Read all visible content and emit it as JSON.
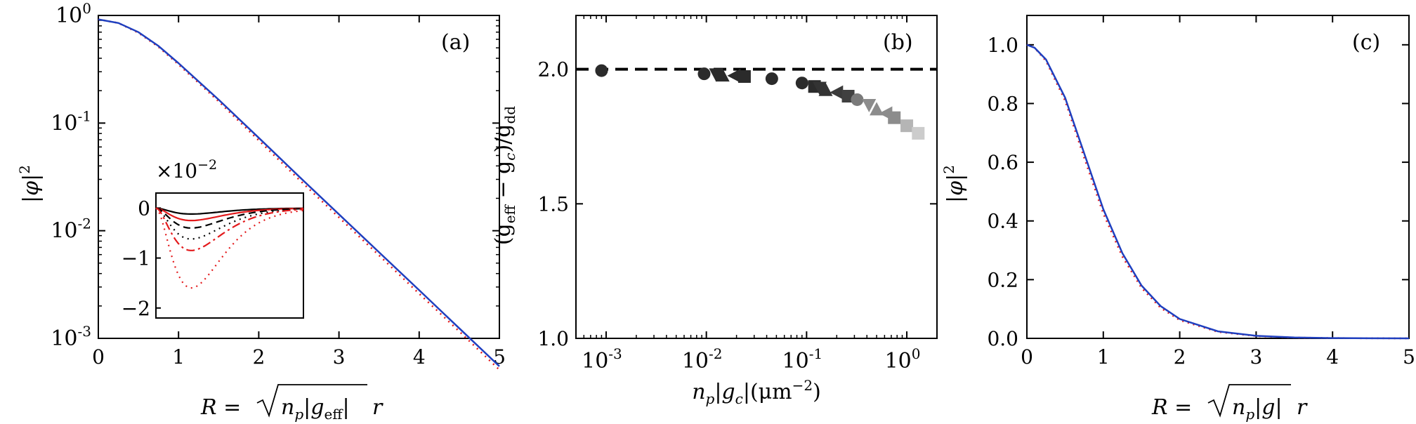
{
  "chart_data": [
    {
      "type": "line",
      "panel_label": "(a)",
      "xlabel_prefix": "R = ",
      "xlabel_sqrt": "n",
      "xlabel_sub_p": "p",
      "xlabel_abs": "|g",
      "xlabel_sub": "eff",
      "xlabel_tail": "|",
      "xlabel_r": "r",
      "ylabel": "|φ|",
      "ylabel_sup": "2",
      "yscale": "log",
      "xlim": [
        0,
        5
      ],
      "ylim": [
        0.001,
        1
      ],
      "xticks": [
        0,
        1,
        2,
        3,
        4,
        5
      ],
      "xtick_labels": [
        "0",
        "1",
        "2",
        "3",
        "4",
        "5"
      ],
      "yticks": [
        1,
        0.1,
        0.01,
        0.001
      ],
      "ytick_base": "10",
      "ytick_exps": [
        "0",
        "-1",
        "-2",
        "-3"
      ],
      "series": [
        {
          "style": "solid",
          "color": "#1f3fbf",
          "x": [
            0,
            0.25,
            0.5,
            0.75,
            1.0,
            1.5,
            2.0,
            2.5,
            3.0,
            3.5,
            4.0,
            4.5,
            5.0
          ],
          "y": [
            0.92,
            0.85,
            0.7,
            0.52,
            0.36,
            0.165,
            0.073,
            0.032,
            0.0142,
            0.0063,
            0.0028,
            0.00124,
            0.00055
          ]
        },
        {
          "style": "dotted",
          "color": "#e31a1c",
          "x": [
            0,
            0.25,
            0.5,
            0.75,
            1.0,
            1.5,
            2.0,
            2.5,
            3.0,
            3.5,
            4.0,
            4.5,
            5.0
          ],
          "y": [
            0.92,
            0.85,
            0.69,
            0.51,
            0.35,
            0.159,
            0.069,
            0.03,
            0.0133,
            0.0059,
            0.0026,
            0.00116,
            0.00051
          ]
        }
      ],
      "inset": {
        "type": "line",
        "scale_label": "×10",
        "scale_exp": "−2",
        "xlim": [
          0,
          5
        ],
        "ylim": [
          -2.2,
          0.3
        ],
        "yticks": [
          0,
          -1,
          -2
        ],
        "ytick_labels": [
          "0",
          "−1",
          "−2"
        ],
        "series": [
          {
            "style": "solid",
            "color": "#000000",
            "depth": 0.12
          },
          {
            "style": "solid",
            "color": "#e31a1c",
            "depth": 0.25
          },
          {
            "style": "dashed",
            "color": "#000000",
            "depth": 0.4
          },
          {
            "style": "dotted",
            "color": "#000000",
            "depth": 0.62
          },
          {
            "style": "dashdot",
            "color": "#e31a1c",
            "depth": 0.85
          },
          {
            "style": "dotted",
            "color": "#e31a1c",
            "depth": 1.6
          }
        ]
      }
    },
    {
      "type": "scatter",
      "panel_label": "(b)",
      "xlabel_n": "n",
      "xlabel_sub_p": "p",
      "xlabel_abs": "|g",
      "xlabel_sub_c": "c",
      "xlabel_tail": "|(μm",
      "xlabel_sup": "−2",
      "xlabel_close": ")",
      "ylabel_open": "(g",
      "ylabel_sub_eff": "eff",
      "ylabel_mid": " − g",
      "ylabel_sub_c": "c",
      "ylabel_close": ")/g",
      "ylabel_sub_dd": "dd",
      "xscale": "log",
      "xlim": [
        0.0005,
        2
      ],
      "ylim": [
        1.0,
        2.2
      ],
      "xticks": [
        0.001,
        0.01,
        0.1,
        1
      ],
      "xtick_base": "10",
      "xtick_exps": [
        "-3",
        "-2",
        "-1",
        "0"
      ],
      "yticks": [
        1.0,
        1.5,
        2.0
      ],
      "ytick_labels": [
        "1.0",
        "1.5",
        "2.0"
      ],
      "reference_line": 2.0,
      "points": [
        {
          "x": 0.0009,
          "y": 1.995,
          "marker": "circle",
          "color": "#2b2b2b"
        },
        {
          "x": 0.0095,
          "y": 1.983,
          "marker": "circle",
          "color": "#2b2b2b"
        },
        {
          "x": 0.0125,
          "y": 1.98,
          "marker": "triangle-down",
          "color": "#2b2b2b"
        },
        {
          "x": 0.0145,
          "y": 1.978,
          "marker": "triangle-up",
          "color": "#2b2b2b"
        },
        {
          "x": 0.019,
          "y": 1.976,
          "marker": "triangle-left",
          "color": "#2b2b2b"
        },
        {
          "x": 0.024,
          "y": 1.973,
          "marker": "square",
          "color": "#2b2b2b"
        },
        {
          "x": 0.045,
          "y": 1.965,
          "marker": "circle",
          "color": "#2b2b2b"
        },
        {
          "x": 0.09,
          "y": 1.949,
          "marker": "circle",
          "color": "#2b2b2b"
        },
        {
          "x": 0.12,
          "y": 1.936,
          "marker": "square",
          "color": "#2b2b2b"
        },
        {
          "x": 0.135,
          "y": 1.93,
          "marker": "triangle-down",
          "color": "#333333"
        },
        {
          "x": 0.155,
          "y": 1.924,
          "marker": "triangle-up",
          "color": "#333333"
        },
        {
          "x": 0.2,
          "y": 1.914,
          "marker": "triangle-left",
          "color": "#3a3a3a"
        },
        {
          "x": 0.26,
          "y": 1.9,
          "marker": "square",
          "color": "#404040"
        },
        {
          "x": 0.32,
          "y": 1.887,
          "marker": "circle",
          "color": "#7a7a7a"
        },
        {
          "x": 0.42,
          "y": 1.866,
          "marker": "triangle-down",
          "color": "#8c8c8c"
        },
        {
          "x": 0.5,
          "y": 1.852,
          "marker": "triangle-up",
          "color": "#8c8c8c"
        },
        {
          "x": 0.62,
          "y": 1.836,
          "marker": "triangle-left",
          "color": "#8c8c8c"
        },
        {
          "x": 0.75,
          "y": 1.82,
          "marker": "square",
          "color": "#8c8c8c"
        },
        {
          "x": 1.0,
          "y": 1.79,
          "marker": "square",
          "color": "#b5b5b5"
        },
        {
          "x": 1.3,
          "y": 1.762,
          "marker": "square",
          "color": "#cccccc"
        }
      ]
    },
    {
      "type": "line",
      "panel_label": "(c)",
      "xlabel_prefix": "R = ",
      "xlabel_sqrt": "n",
      "xlabel_sub_p": "p",
      "xlabel_abs": "|g|",
      "xlabel_r": "r",
      "ylabel": "|φ|",
      "ylabel_sup": "2",
      "xlim": [
        0,
        5
      ],
      "ylim": [
        0,
        1.1
      ],
      "xticks": [
        0,
        1,
        2,
        3,
        4,
        5
      ],
      "xtick_labels": [
        "0",
        "1",
        "2",
        "3",
        "4",
        "5"
      ],
      "yticks": [
        0,
        0.2,
        0.4,
        0.6,
        0.8,
        1.0
      ],
      "ytick_labels": [
        "0.0",
        "0.2",
        "0.4",
        "0.6",
        "0.8",
        "1.0"
      ],
      "series": [
        {
          "style": "solid",
          "color": "#1f3fbf",
          "x": [
            0,
            0.1,
            0.25,
            0.5,
            0.75,
            1.0,
            1.25,
            1.5,
            1.75,
            2.0,
            2.5,
            3.0,
            3.5,
            4.0,
            4.5,
            5.0
          ],
          "y": [
            1.0,
            0.99,
            0.95,
            0.82,
            0.63,
            0.44,
            0.29,
            0.18,
            0.11,
            0.066,
            0.024,
            0.0085,
            0.003,
            0.001,
            0.0003,
            0.0001
          ]
        },
        {
          "style": "dotted",
          "color": "#e31a1c",
          "x": [
            0,
            0.1,
            0.25,
            0.5,
            0.75,
            1.0,
            1.25,
            1.5,
            1.75,
            2.0,
            2.5,
            3.0,
            3.5,
            4.0,
            4.5,
            5.0
          ],
          "y": [
            1.0,
            0.99,
            0.945,
            0.81,
            0.615,
            0.425,
            0.278,
            0.172,
            0.104,
            0.062,
            0.022,
            0.0078,
            0.0027,
            0.0009,
            0.0003,
            0.0001
          ]
        }
      ]
    }
  ]
}
